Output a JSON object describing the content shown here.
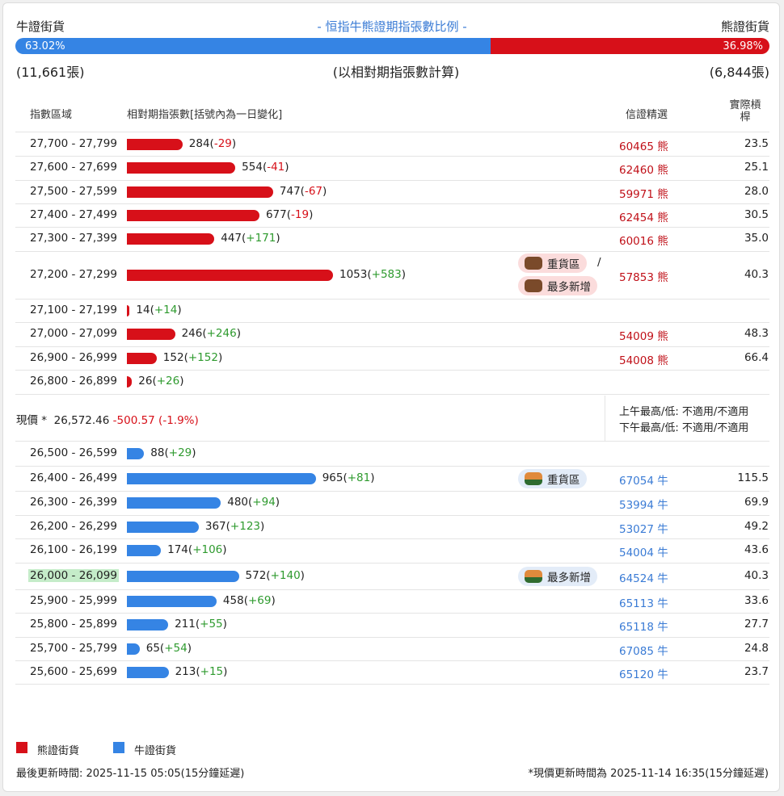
{
  "header": {
    "bull_title": "牛證街貨",
    "center_title": "- 恒指牛熊證期指張數比例 -",
    "bear_title": "熊證街貨"
  },
  "ratio": {
    "bull_pct": "63.02%",
    "bear_pct": "36.98%",
    "bull_fraction": 0.6302
  },
  "counts": {
    "bull": "(11,661張)",
    "center": "(以相對期指張數計算)",
    "bear": "(6,844張)"
  },
  "table_headers": {
    "range": "指數區域",
    "contracts": "相對期指張數[括號內為一日變化]",
    "pick": "信證精選",
    "leverage": "實際槓桿"
  },
  "colors": {
    "bear": "#d71019",
    "bull": "#3584e4",
    "positive": "#2e9a2e"
  },
  "chart_data": {
    "type": "bar",
    "bear_rows": [
      {
        "range": "27,700 - 27,799",
        "value": 284,
        "change": "-29",
        "code": "60465 熊",
        "leverage": "23.5",
        "tag": ""
      },
      {
        "range": "27,600 - 27,699",
        "value": 554,
        "change": "-41",
        "code": "62460 熊",
        "leverage": "25.1",
        "tag": ""
      },
      {
        "range": "27,500 - 27,599",
        "value": 747,
        "change": "-67",
        "code": "59971 熊",
        "leverage": "28.0",
        "tag": ""
      },
      {
        "range": "27,400 - 27,499",
        "value": 677,
        "change": "-19",
        "code": "62454 熊",
        "leverage": "30.5",
        "tag": ""
      },
      {
        "range": "27,300 - 27,399",
        "value": 447,
        "change": "+171",
        "code": "60016 熊",
        "leverage": "35.0",
        "tag": ""
      },
      {
        "range": "27,200 - 27,299",
        "value": 1053,
        "change": "+583",
        "code": "57853 熊",
        "leverage": "40.3",
        "tag": "double"
      },
      {
        "range": "27,100 - 27,199",
        "value": 14,
        "change": "+14",
        "code": "",
        "leverage": "",
        "tag": ""
      },
      {
        "range": "27,000 - 27,099",
        "value": 246,
        "change": "+246",
        "code": "54009 熊",
        "leverage": "48.3",
        "tag": ""
      },
      {
        "range": "26,900 - 26,999",
        "value": 152,
        "change": "+152",
        "code": "54008 熊",
        "leverage": "66.4",
        "tag": ""
      },
      {
        "range": "26,800 - 26,899",
        "value": 26,
        "change": "+26",
        "code": "",
        "leverage": "",
        "tag": ""
      }
    ],
    "bull_rows": [
      {
        "range": "26,500 - 26,599",
        "value": 88,
        "change": "+29",
        "code": "",
        "leverage": "",
        "tag": ""
      },
      {
        "range": "26,400 - 26,499",
        "value": 965,
        "change": "+81",
        "code": "67054 牛",
        "leverage": "115.5",
        "tag": "heavy"
      },
      {
        "range": "26,300 - 26,399",
        "value": 480,
        "change": "+94",
        "code": "53994 牛",
        "leverage": "69.9",
        "tag": ""
      },
      {
        "range": "26,200 - 26,299",
        "value": 367,
        "change": "+123",
        "code": "53027 牛",
        "leverage": "49.2",
        "tag": ""
      },
      {
        "range": "26,100 - 26,199",
        "value": 174,
        "change": "+106",
        "code": "54004 牛",
        "leverage": "43.6",
        "tag": ""
      },
      {
        "range": "26,000 - 26,099",
        "value": 572,
        "change": "+140",
        "code": "64524 牛",
        "leverage": "40.3",
        "tag": "most",
        "highlight": true
      },
      {
        "range": "25,900 - 25,999",
        "value": 458,
        "change": "+69",
        "code": "65113 牛",
        "leverage": "33.6",
        "tag": ""
      },
      {
        "range": "25,800 - 25,899",
        "value": 211,
        "change": "+55",
        "code": "65118 牛",
        "leverage": "27.7",
        "tag": ""
      },
      {
        "range": "25,700 - 25,799",
        "value": 65,
        "change": "+54",
        "code": "67085 牛",
        "leverage": "24.8",
        "tag": ""
      },
      {
        "range": "25,600 - 25,699",
        "value": 213,
        "change": "+15",
        "code": "65120 牛",
        "leverage": "23.7",
        "tag": ""
      }
    ]
  },
  "tags": {
    "heavy": "重貨區",
    "most": "最多新增",
    "slash": "/"
  },
  "current": {
    "label": "現價 *",
    "price": "26,572.46",
    "change": "-500.57 (-1.9%)",
    "am": "上午最高/低: 不適用/不適用",
    "pm": "下午最高/低: 不適用/不適用"
  },
  "legend": {
    "bear": "熊證街貨",
    "bull": "牛證街貨"
  },
  "footer": {
    "updated": "最後更新時間: 2025-11-15 05:05(15分鐘延遲)",
    "price_updated": "*現價更新時間為 2025-11-14 16:35(15分鐘延遲)"
  }
}
